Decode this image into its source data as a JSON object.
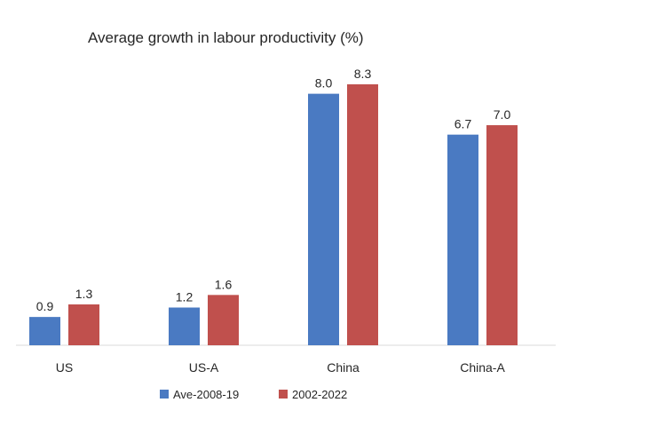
{
  "chart_data": {
    "type": "bar",
    "title": "Average growth in labour productivity (%)",
    "categories": [
      "US",
      "US-A",
      "China",
      "China-A"
    ],
    "series": [
      {
        "name": "Ave-2008-19",
        "values": [
          0.9,
          1.2,
          8.0,
          6.7
        ],
        "color": "#4a7ac2"
      },
      {
        "name": "2002-2022",
        "values": [
          1.3,
          1.6,
          8.3,
          7.0
        ],
        "color": "#c0504d"
      }
    ],
    "data_labels": [
      [
        "0.9",
        "1.2",
        "8.0",
        "6.7"
      ],
      [
        "1.3",
        "1.6",
        "8.3",
        "7.0"
      ]
    ],
    "xlabel": "",
    "ylabel": "",
    "ylim": [
      0,
      8.3
    ],
    "grid": false,
    "legend_position": "bottom"
  }
}
